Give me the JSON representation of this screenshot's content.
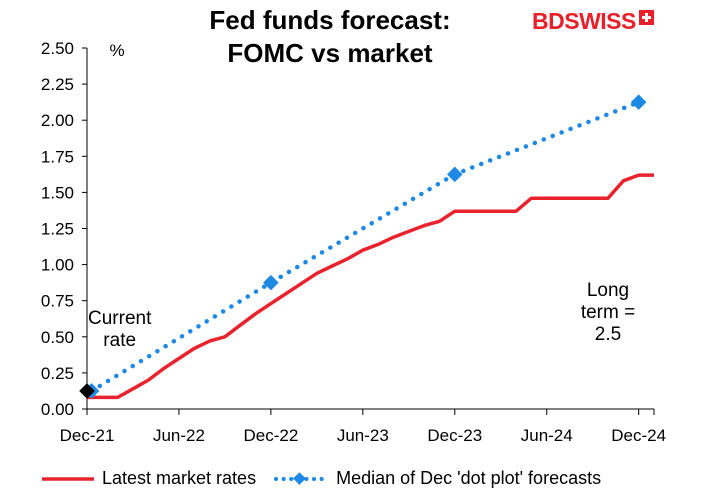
{
  "title_line1": "Fed funds forecast:",
  "title_line2": "FOMC vs market",
  "brand": {
    "part1": "BD",
    "part2": "SWISS",
    "color": "#e8202a"
  },
  "chart_data": {
    "type": "line",
    "ylabel": "%",
    "ylim": [
      0,
      2.5
    ],
    "y_ticks": [
      "0.00",
      "0.25",
      "0.50",
      "0.75",
      "1.00",
      "1.25",
      "1.50",
      "1.75",
      "2.00",
      "2.25",
      "2.50"
    ],
    "x_ticks": [
      "Dec-21",
      "Jun-22",
      "Dec-22",
      "Jun-23",
      "Dec-23",
      "Jun-24",
      "Dec-24"
    ],
    "xlim_months": [
      0,
      37
    ],
    "series": [
      {
        "name": "Latest market rates",
        "style": "solid",
        "color": "#e8232d",
        "x": [
          0,
          1,
          2,
          3,
          4,
          5,
          6,
          7,
          8,
          9,
          10,
          11,
          12,
          13,
          14,
          15,
          16,
          17,
          18,
          19,
          20,
          21,
          22,
          23,
          24,
          25,
          26,
          27,
          28,
          29,
          30,
          31,
          32,
          33,
          34,
          35,
          36,
          37
        ],
        "values": [
          0.08,
          0.08,
          0.08,
          0.14,
          0.2,
          0.28,
          0.35,
          0.42,
          0.47,
          0.5,
          0.58,
          0.66,
          0.73,
          0.8,
          0.87,
          0.94,
          0.99,
          1.04,
          1.1,
          1.14,
          1.19,
          1.23,
          1.27,
          1.3,
          1.37,
          1.37,
          1.37,
          1.37,
          1.37,
          1.46,
          1.46,
          1.46,
          1.46,
          1.46,
          1.46,
          1.58,
          1.62,
          1.62
        ]
      },
      {
        "name": "Median of Dec 'dot plot' forecasts",
        "style": "dotted",
        "color": "#1e88e5",
        "x": [
          0.3,
          12,
          24,
          36
        ],
        "values": [
          0.125,
          0.875,
          1.625,
          2.125
        ]
      }
    ],
    "current_rate": {
      "x": 0,
      "value": 0.125,
      "color": "#000000"
    },
    "annotations": {
      "current_rate": [
        "Current",
        "rate"
      ],
      "long_term": [
        "Long",
        "term =",
        "2.5"
      ]
    }
  }
}
